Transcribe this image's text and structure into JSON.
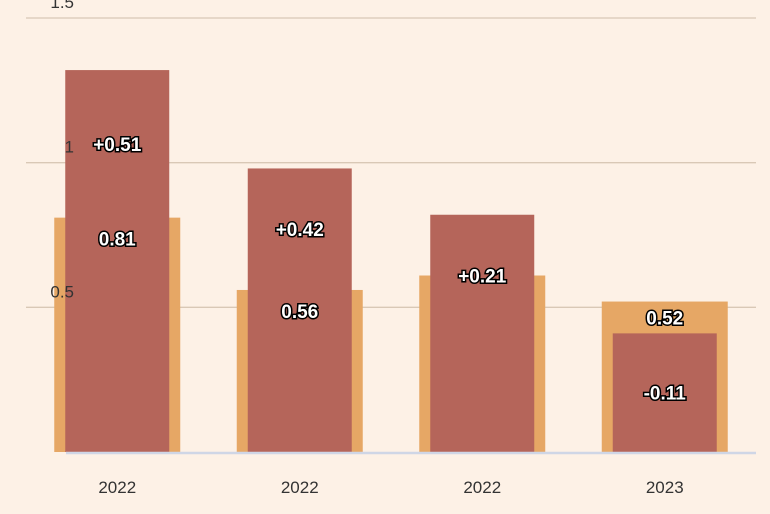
{
  "chart_data": {
    "type": "bar",
    "categories": [
      "2022",
      "2022",
      "2022",
      "2023"
    ],
    "series": [
      {
        "role": "base",
        "values": [
          0.81,
          0.56,
          0.61,
          0.52
        ],
        "color": "#e6a765"
      },
      {
        "role": "total",
        "values": [
          1.32,
          0.98,
          0.82,
          0.41
        ],
        "color": "#b5655a"
      }
    ],
    "bar_labels": [
      {
        "total": "+0.51",
        "base": "0.81"
      },
      {
        "total": "+0.42",
        "base": "0.56"
      },
      {
        "total": "+0.21",
        "base": ""
      },
      {
        "total": "-0.11",
        "base": "0.52"
      }
    ],
    "y_ticks": [
      {
        "value": 0.5,
        "label": "0.5"
      },
      {
        "value": 1,
        "label": "1"
      },
      {
        "value": 1.5,
        "label": "1.5"
      }
    ],
    "ylim": [
      0,
      1.5
    ],
    "grid": true,
    "colors": {
      "background": "#fdf1e6",
      "grid": "#d9c8b6",
      "axis": "#cfd6e6"
    }
  }
}
